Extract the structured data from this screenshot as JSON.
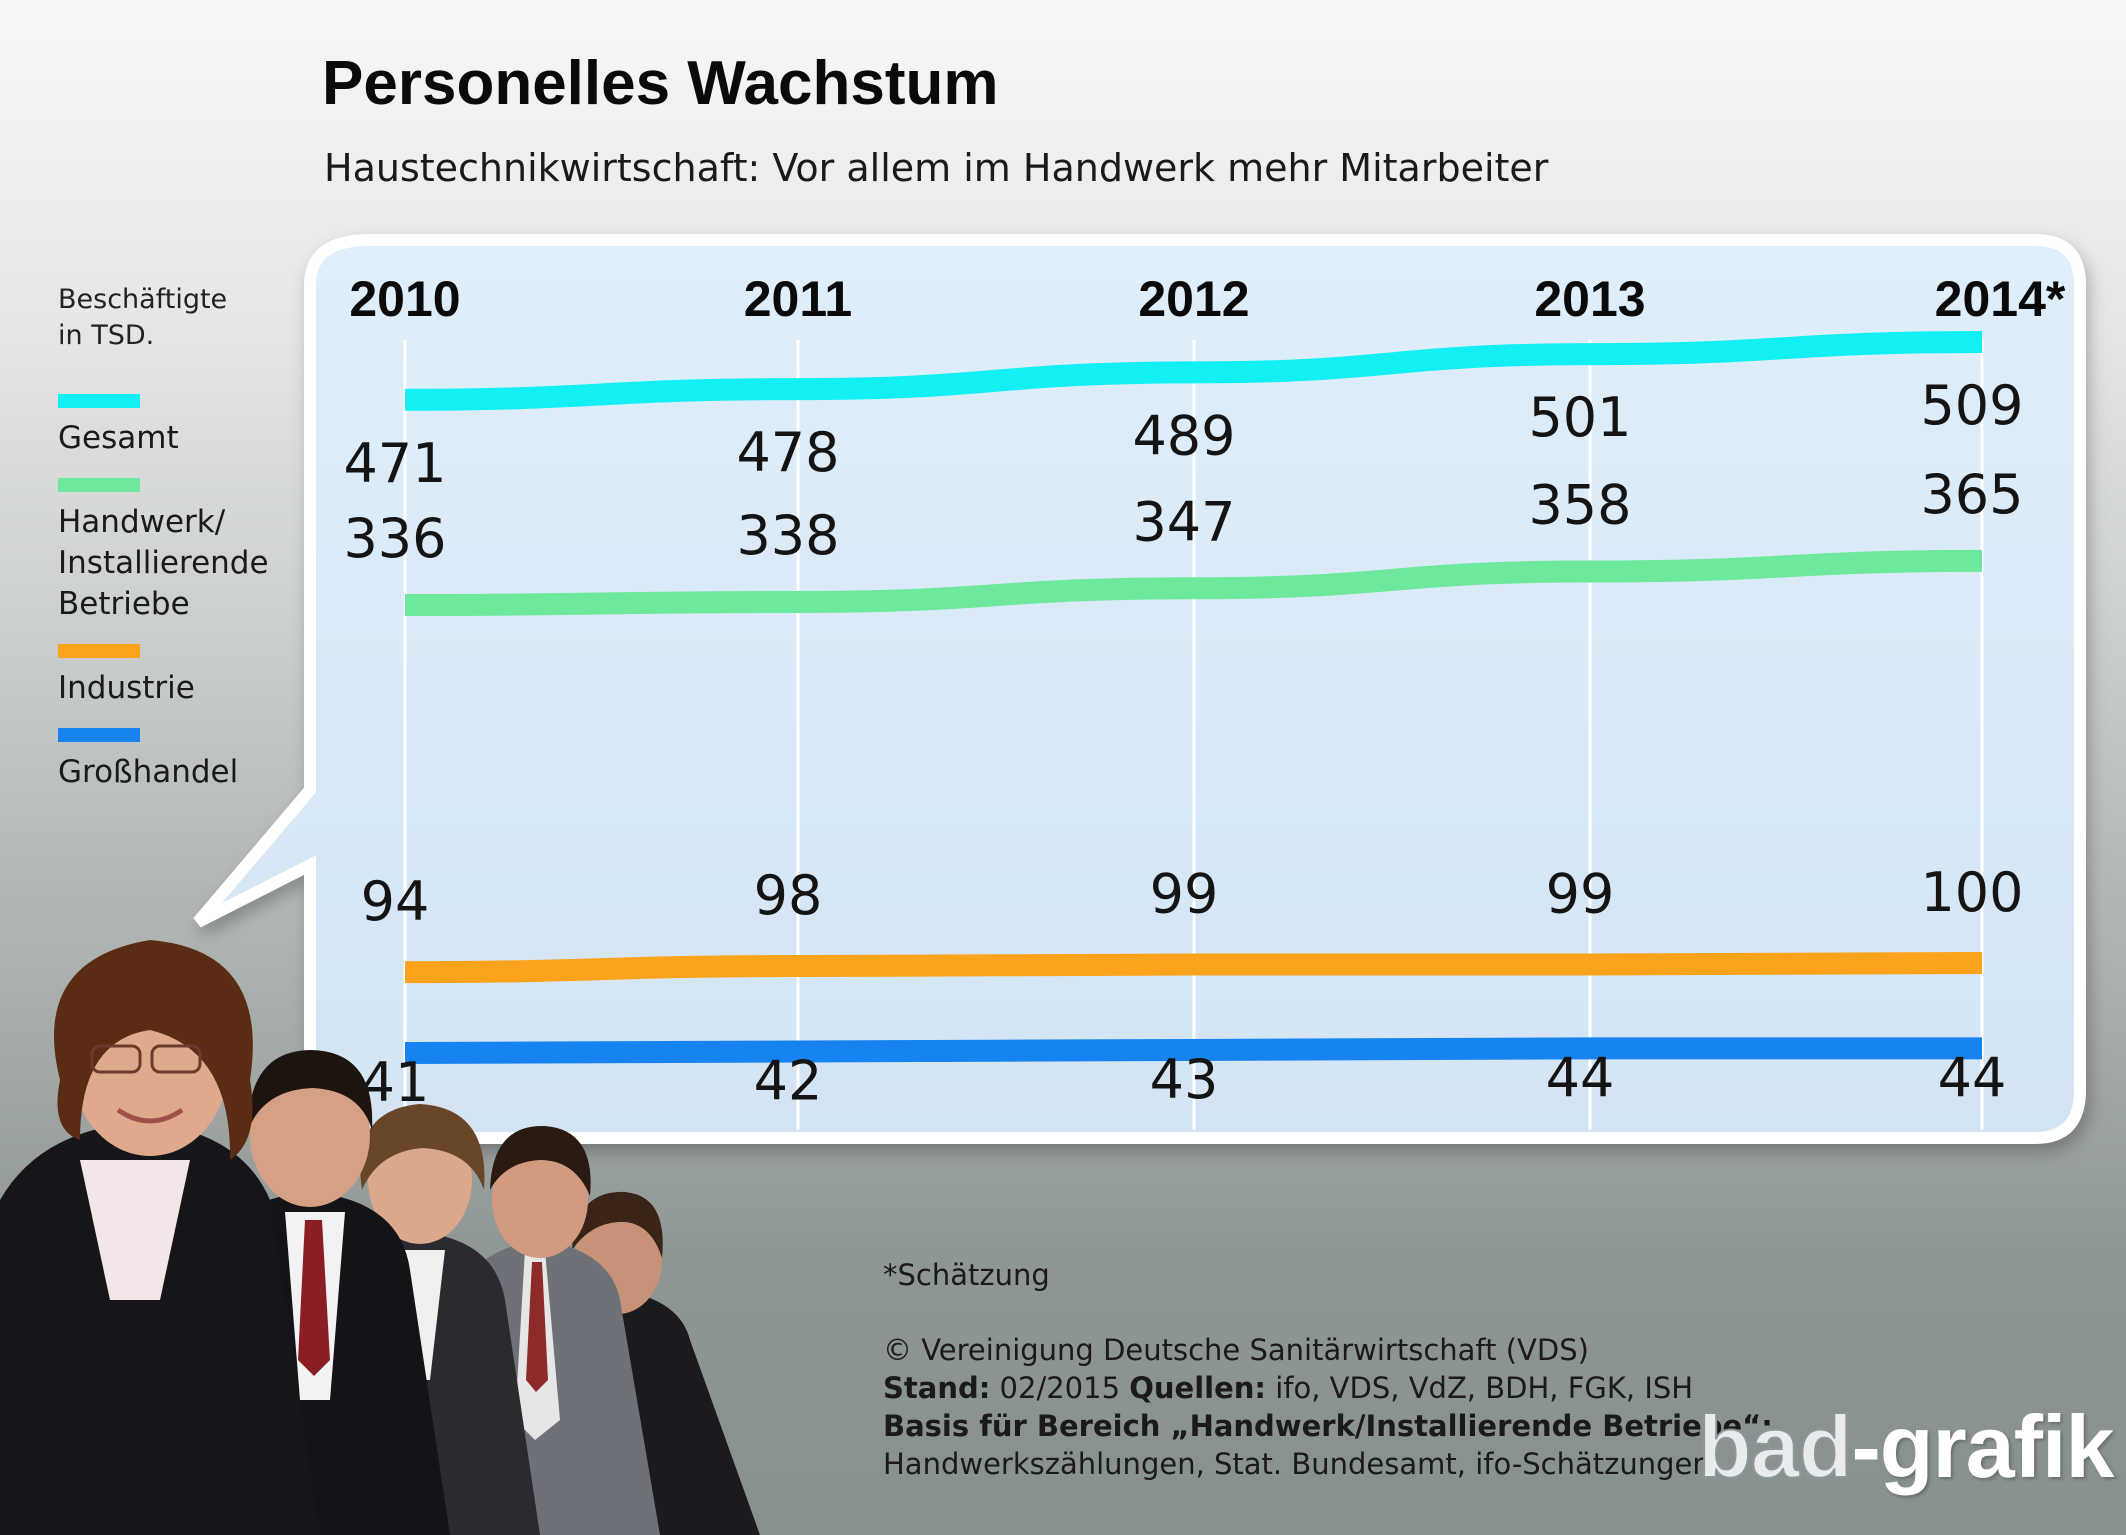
{
  "title": "Personelles Wachstum",
  "subtitle": "Haustechnikwirtschaft: Vor allem im Handwerk mehr Mitarbeiter",
  "legend": {
    "unit": "Beschäftigte\nin TSD.",
    "items": [
      {
        "label": "Gesamt",
        "color": "#12f0f4"
      },
      {
        "label": "Handwerk/\nInstallierende\nBetriebe",
        "color": "#6ee89c"
      },
      {
        "label": "Industrie",
        "color": "#fba31a"
      },
      {
        "label": "Großhandel",
        "color": "#1683f0"
      }
    ]
  },
  "chart_data": {
    "type": "line",
    "categories": [
      "2010",
      "2011",
      "2012",
      "2013",
      "2014*"
    ],
    "series": [
      {
        "name": "Gesamt",
        "values": [
          471,
          478,
          489,
          501,
          509
        ],
        "color": "#12f0f4"
      },
      {
        "name": "Handwerk/Installierende Betriebe",
        "values": [
          336,
          338,
          347,
          358,
          365
        ],
        "color": "#6ee89c"
      },
      {
        "name": "Industrie",
        "values": [
          94,
          98,
          99,
          99,
          100
        ],
        "color": "#fba31a"
      },
      {
        "name": "Großhandel",
        "values": [
          41,
          42,
          43,
          44,
          44
        ],
        "color": "#1683f0"
      }
    ],
    "grid": true,
    "legend_position": "left"
  },
  "footer": {
    "note": "*Schätzung",
    "copyright": "© Vereinigung Deutsche Sanitärwirtschaft (VDS)",
    "stand_label": "Stand:",
    "stand_value": "02/2015",
    "quellen_label": "Quellen:",
    "quellen_value": "ifo, VDS, VdZ, BDH, FGK, ISH",
    "basis_label": "Basis für Bereich „Handwerk/Installierende Betriebe“:",
    "basis_value": "Handwerkszählungen, Stat. Bundesamt, ifo-Schätzungen"
  },
  "logo": {
    "part1": "bad",
    "part2": "-",
    "part3": "grafik"
  }
}
